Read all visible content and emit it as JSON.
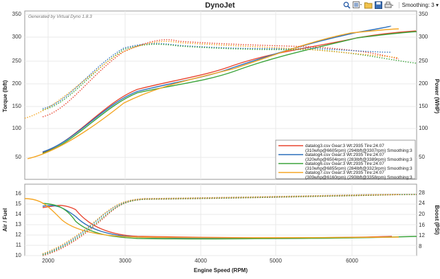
{
  "window": {
    "title": "DynoJet"
  },
  "toolbar": {
    "icons": [
      "zoom-icon",
      "filter-icon",
      "open-folder-icon",
      "save-icon",
      "print-icon"
    ],
    "smoothing_label": "Smoothing: 3"
  },
  "top_chart": {
    "generated_by": "Generated by Virtual Dyno 1.8.3",
    "y_left_label": "Torque (lbft)",
    "y_right_label": "Power (WHP)",
    "y_ticks": [
      "50",
      "100",
      "150",
      "200",
      "250",
      "300",
      "350"
    ]
  },
  "legend": [
    {
      "line1": "datalog3.csv Gear:3 Wt:2935 Tire:24.07",
      "line2": "(310whp@6605rpm) (294lbft@3307rpm) Smoothing:3",
      "color": "#e8442f"
    },
    {
      "line1": "datalog4.csv Gear:3 Wt:2935 Tire:24.07",
      "line2": "(320whp@6504rpm) (283lbft@3389rpm) Smoothing:3",
      "color": "#2a6ebb"
    },
    {
      "line1": "datalog6.csv Gear:3 Wt:2935 Tire:24.07",
      "line2": "(310whp@6855rpm) (284lbft@3323rpm) Smoothing:3",
      "color": "#3aa43a"
    },
    {
      "line1": "datalog7.csv Gear:3 Wt:2935 Tire:24.07",
      "line2": "(309whp@6160rpm) (290lbft@3358rpm) Smoothing:3",
      "color": "#f5a623"
    }
  ],
  "bottom_chart": {
    "y_left_label": "Air / Fuel",
    "y_right_label": "Boost (PSI)",
    "y_left_ticks": [
      "10",
      "11",
      "12",
      "13",
      "14",
      "15",
      "16"
    ],
    "y_right_ticks": [
      "8",
      "12",
      "16",
      "20",
      "24",
      "28"
    ]
  },
  "x_axis": {
    "label": "Engine Speed (RPM)",
    "ticks": [
      "2000",
      "3000",
      "4000",
      "5000",
      "6000"
    ]
  }
}
